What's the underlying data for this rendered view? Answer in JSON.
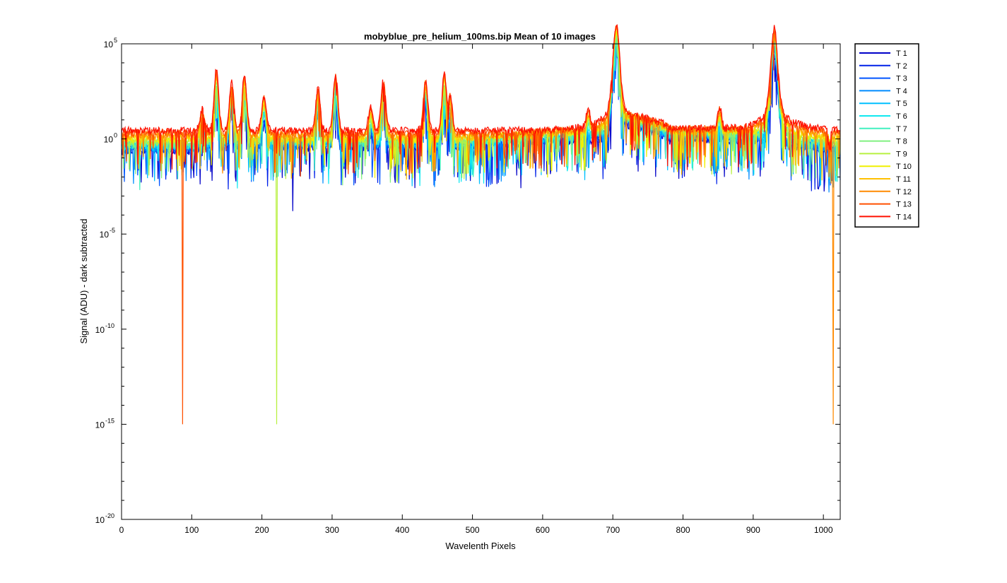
{
  "chart_data": {
    "type": "line",
    "title": "mobyblue_pre_helium_100ms.bip  Mean of 10 images",
    "xlabel": "Wavelenth Pixels",
    "ylabel": "Signal (ADU) - dark subtracted",
    "xlim": [
      0,
      1024
    ],
    "ylim_exponent": [
      -20,
      5
    ],
    "yscale": "log",
    "x_ticks": [
      0,
      100,
      200,
      300,
      400,
      500,
      600,
      700,
      800,
      900,
      1000
    ],
    "y_ticks": [
      {
        "exp": 5,
        "base": "10",
        "sup": "5"
      },
      {
        "exp": 0,
        "base": "10",
        "sup": "0"
      },
      {
        "exp": -5,
        "base": "10",
        "sup": "-5"
      },
      {
        "exp": -10,
        "base": "10",
        "sup": "-10"
      },
      {
        "exp": -15,
        "base": "10",
        "sup": "-15"
      },
      {
        "exp": -20,
        "base": "10",
        "sup": "-20"
      }
    ],
    "grid": false,
    "legend_position": "outside-top-right",
    "peaks": [
      {
        "x": 115,
        "log10y": 1.1
      },
      {
        "x": 135,
        "log10y": 3.2
      },
      {
        "x": 157,
        "log10y": 2.5
      },
      {
        "x": 175,
        "log10y": 2.9
      },
      {
        "x": 203,
        "log10y": 1.8
      },
      {
        "x": 280,
        "log10y": 2.2
      },
      {
        "x": 305,
        "log10y": 3.0
      },
      {
        "x": 355,
        "log10y": 1.2
      },
      {
        "x": 373,
        "log10y": 2.7
      },
      {
        "x": 433,
        "log10y": 2.7
      },
      {
        "x": 460,
        "log10y": 3.1
      },
      {
        "x": 468,
        "log10y": 1.9
      },
      {
        "x": 665,
        "log10y": 1.1
      },
      {
        "x": 705,
        "log10y": 4.2
      },
      {
        "x": 852,
        "log10y": 1.2
      },
      {
        "x": 930,
        "log10y": 4.0
      }
    ],
    "deep_dips": [
      {
        "x": 87,
        "log10y": -15,
        "series": "T 13"
      },
      {
        "x": 221,
        "log10y": -15,
        "series": "T 9"
      },
      {
        "x": 1014,
        "log10y": -15,
        "series": "T 12"
      }
    ],
    "series": [
      {
        "name": "T 1",
        "color": "#0000c8"
      },
      {
        "name": "T 2",
        "color": "#0020e8"
      },
      {
        "name": "T 3",
        "color": "#0055ff"
      },
      {
        "name": "T 4",
        "color": "#008cff"
      },
      {
        "name": "T 5",
        "color": "#00c0ff"
      },
      {
        "name": "T 6",
        "color": "#10e8f0"
      },
      {
        "name": "T 7",
        "color": "#40f0c0"
      },
      {
        "name": "T 8",
        "color": "#80f080"
      },
      {
        "name": "T 9",
        "color": "#b8f040"
      },
      {
        "name": "T 10",
        "color": "#f0f000"
      },
      {
        "name": "T 11",
        "color": "#ffc000"
      },
      {
        "name": "T 12",
        "color": "#ff8a00"
      },
      {
        "name": "T 13",
        "color": "#ff5000"
      },
      {
        "name": "T 14",
        "color": "#ff1000"
      }
    ]
  }
}
